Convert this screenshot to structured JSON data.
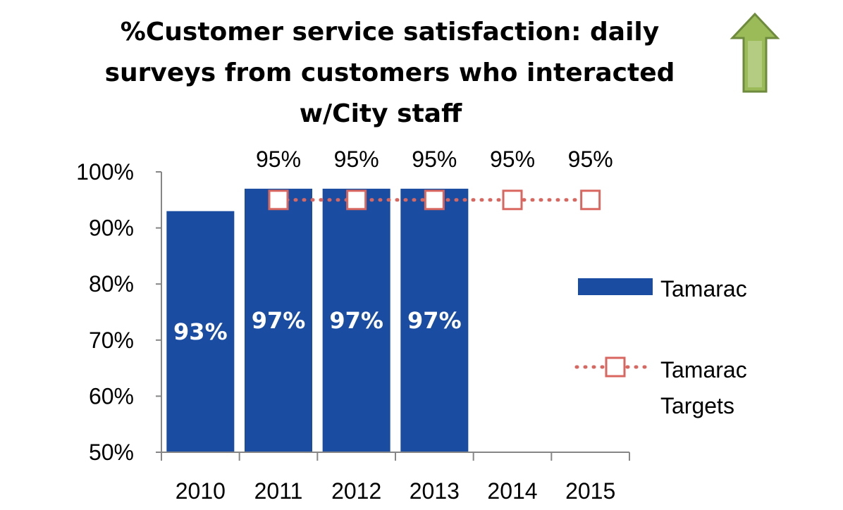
{
  "chart_data": {
    "type": "bar",
    "title_lines": [
      "%Customer service satisfaction: daily",
      "surveys from customers who interacted",
      "w/City staff"
    ],
    "categories": [
      "2010",
      "2011",
      "2012",
      "2013",
      "2014",
      "2015"
    ],
    "series": [
      {
        "name": "Tamarac",
        "kind": "bar",
        "color": "#1A4DA1",
        "values": [
          93,
          97,
          97,
          97,
          null,
          null
        ],
        "labels": [
          "93%",
          "97%",
          "97%",
          "97%",
          "",
          ""
        ]
      },
      {
        "name": "Tamarac Targets",
        "kind": "line",
        "color": "#D9665F",
        "values": [
          null,
          95,
          95,
          95,
          95,
          95
        ],
        "labels": [
          "",
          "95%",
          "95%",
          "95%",
          "95%",
          "95%"
        ]
      }
    ],
    "ylim": [
      50,
      100
    ],
    "yticks": [
      50,
      60,
      70,
      80,
      90,
      100
    ],
    "ytick_labels": [
      "50%",
      "60%",
      "70%",
      "80%",
      "90%",
      "100%"
    ],
    "legend": {
      "position": "right",
      "bar_label": "Tamarac",
      "line_label_lines": [
        "Tamarac",
        "Targets"
      ]
    },
    "indicator": {
      "icon": "up-arrow-icon",
      "color": "#9BBB59"
    }
  }
}
